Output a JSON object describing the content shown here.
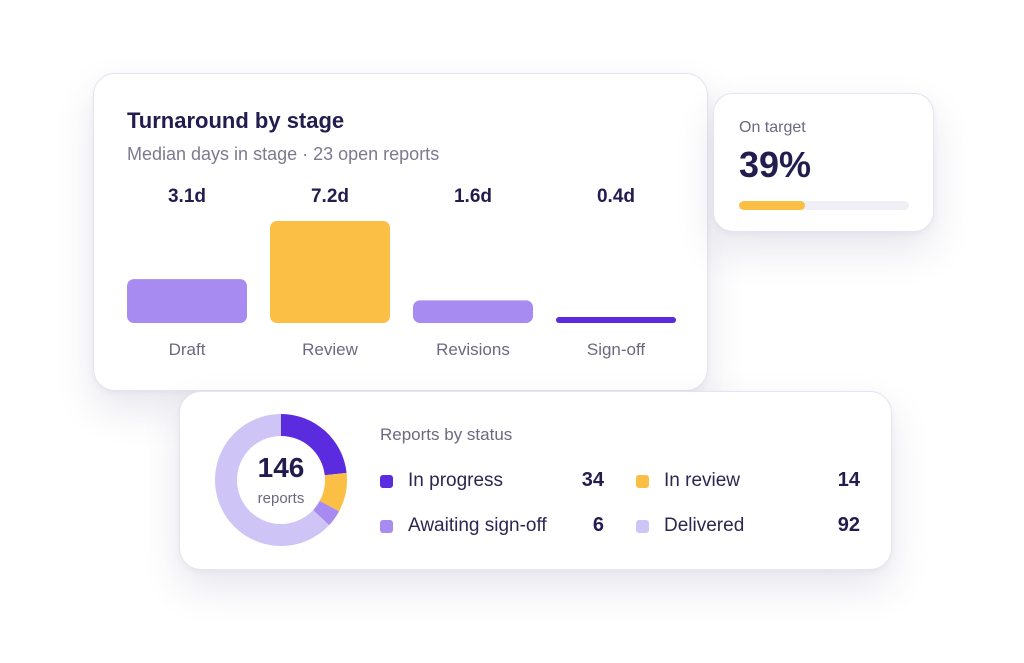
{
  "turnaround": {
    "title": "Turnaround by stage",
    "subtitle": "Median days in stage · 23 open reports"
  },
  "on_target": {
    "label": "On target",
    "value_text": "39%",
    "progress_fraction": 0.39,
    "bar_color": "#fbbf45"
  },
  "status": {
    "heading": "Reports by status",
    "total": "146",
    "total_label": "reports"
  },
  "chart_data": [
    {
      "type": "bar",
      "categories": [
        "Draft",
        "Review",
        "Revisions",
        "Sign-off"
      ],
      "values": [
        3.1,
        7.2,
        1.6,
        0.4
      ],
      "value_labels": [
        "3.1d",
        "7.2d",
        "1.6d",
        "0.4d"
      ],
      "colors": [
        "#a78bf0",
        "#fbbf45",
        "#a78bf0",
        "#5b2be0"
      ],
      "title": "Turnaround by stage",
      "subtitle": "Median days in stage · 23 open reports",
      "grid": false
    },
    {
      "type": "pie",
      "donut": true,
      "categories": [
        "In progress",
        "In review",
        "Awaiting sign-off",
        "Delivered"
      ],
      "values": [
        34,
        14,
        6,
        92
      ],
      "value_labels": [
        "34",
        "14",
        "6",
        "92"
      ],
      "colors": [
        "#5b2be0",
        "#fbbf45",
        "#a78bf0",
        "#cfc4f6"
      ],
      "title": "Reports by status",
      "legend": "right"
    }
  ]
}
